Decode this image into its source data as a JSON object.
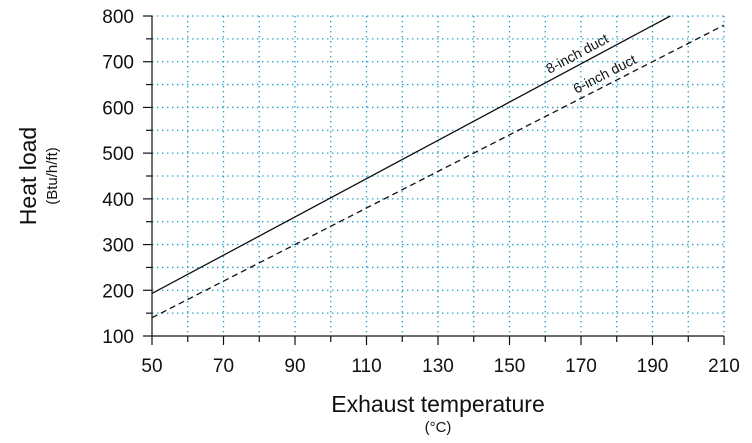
{
  "chart_data": {
    "type": "line",
    "xlabel": "Exhaust temperature",
    "xlabel_unit": "(°C)",
    "ylabel": "Heat load",
    "ylabel_unit": "(Btu/h/ft)",
    "xlim": [
      50,
      210
    ],
    "ylim": [
      100,
      800
    ],
    "xticks": [
      50,
      70,
      90,
      110,
      130,
      150,
      170,
      190,
      210
    ],
    "yticks": [
      100,
      200,
      300,
      400,
      500,
      600,
      700,
      800
    ],
    "x_minor_step": 10,
    "y_minor_step": 50,
    "grid": true,
    "grid_color": "#1aa0c8",
    "series": [
      {
        "name": "8-inch duct",
        "style": "solid",
        "color": "#111111",
        "x": [
          50,
          195
        ],
        "y": [
          193,
          800
        ]
      },
      {
        "name": "6-inch duct",
        "style": "dashed",
        "color": "#111111",
        "x": [
          50,
          210
        ],
        "y": [
          140,
          780
        ]
      }
    ]
  }
}
